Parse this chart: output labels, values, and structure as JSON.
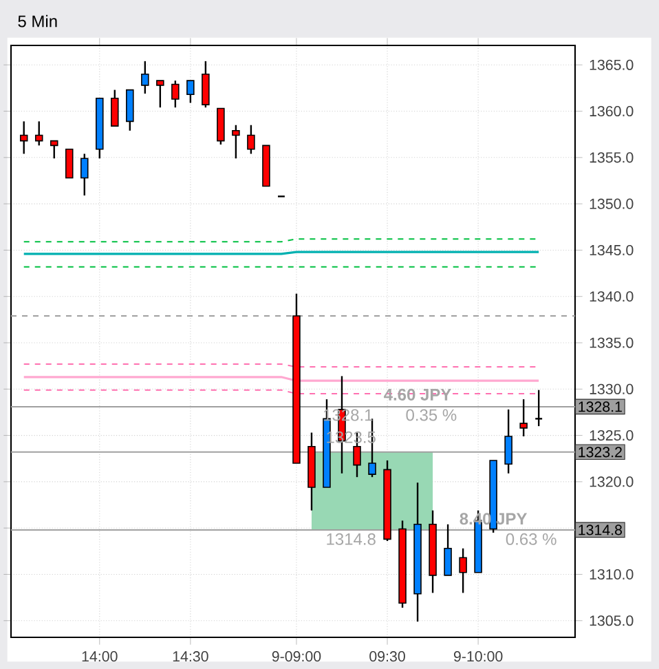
{
  "chart_data": {
    "type": "candlestick",
    "title": "5 Min",
    "categories": [
      null,
      null,
      null,
      null,
      null,
      "14:00",
      null,
      null,
      null,
      null,
      null,
      "14:30",
      null,
      null,
      null,
      null,
      null,
      null,
      "9-09:00",
      null,
      null,
      null,
      null,
      null,
      "09:30",
      null,
      null,
      null,
      null,
      null,
      "9-10:00",
      null,
      null,
      null,
      null
    ],
    "ohlc": [
      [
        1357.4,
        1358.9,
        1355.4,
        1356.8
      ],
      [
        1357.4,
        1358.9,
        1356.3,
        1356.8
      ],
      [
        1356.8,
        1356.8,
        1354.9,
        1356.3
      ],
      [
        1355.9,
        1355.9,
        1352.8,
        1352.8
      ],
      [
        1352.8,
        1355.4,
        1350.9,
        1354.9
      ],
      [
        1355.9,
        1361.4,
        1354.9,
        1361.4
      ],
      [
        1361.4,
        1362.3,
        1358.4,
        1358.4
      ],
      [
        1358.9,
        1362.3,
        1357.9,
        1362.3
      ],
      [
        1362.8,
        1365.4,
        1361.9,
        1364.0
      ],
      [
        1363.3,
        1363.3,
        1360.4,
        1362.8
      ],
      [
        1362.9,
        1363.3,
        1360.4,
        1361.3
      ],
      [
        1361.8,
        1363.3,
        1360.9,
        1363.3
      ],
      [
        1364.0,
        1365.4,
        1360.4,
        1360.7
      ],
      [
        1360.3,
        1360.3,
        1356.4,
        1356.8
      ],
      [
        1357.9,
        1358.5,
        1354.9,
        1357.4
      ],
      [
        1357.4,
        1358.5,
        1355.4,
        1355.9
      ],
      [
        1356.3,
        1356.3,
        1351.9,
        1351.9
      ],
      [
        1350.8,
        1350.8,
        1350.8,
        1350.8
      ],
      [
        1337.9,
        1340.3,
        1322.0,
        1322.0
      ],
      [
        1323.8,
        1325.3,
        1316.9,
        1319.4
      ],
      [
        1319.4,
        1328.9,
        1319.4,
        1326.8
      ],
      [
        1327.8,
        1331.4,
        1320.9,
        1324.4
      ],
      [
        1323.8,
        1325.3,
        1320.5,
        1321.8
      ],
      [
        1320.8,
        1326.8,
        1320.5,
        1322.0
      ],
      [
        1321.3,
        1322.3,
        1313.6,
        1313.8
      ],
      [
        1314.9,
        1315.8,
        1306.4,
        1306.9
      ],
      [
        1307.9,
        1319.9,
        1304.9,
        1315.4
      ],
      [
        1315.4,
        1316.9,
        1308.0,
        1309.9
      ],
      [
        1309.9,
        1315.4,
        1309.9,
        1312.8
      ],
      [
        1311.8,
        1312.8,
        1308.0,
        1310.2
      ],
      [
        1310.2,
        1316.9,
        1310.2,
        1315.8
      ],
      [
        1314.9,
        1322.3,
        1314.5,
        1322.3
      ],
      [
        1321.9,
        1327.8,
        1320.9,
        1324.9
      ],
      [
        1326.3,
        1328.9,
        1324.9,
        1325.8
      ],
      [
        1326.8,
        1329.9,
        1326.0,
        1326.8
      ]
    ],
    "colors": [
      "#ff0000",
      "#ff0000",
      "#ff0000",
      "#ff0000",
      "#0080ff",
      "#0080ff",
      "#ff0000",
      "#0080ff",
      "#0080ff",
      "#ff0000",
      "#ff0000",
      "#0080ff",
      "#ff0000",
      "#ff0000",
      "#ff0000",
      "#ff0000",
      "#ff0000",
      "#000000",
      "#ff0000",
      "#ff0000",
      "#0080ff",
      "#ff0000",
      "#ff0000",
      "#0080ff",
      "#ff0000",
      "#ff0000",
      "#0080ff",
      "#ff0000",
      "#0080ff",
      "#ff0000",
      "#0080ff",
      "#0080ff",
      "#0080ff",
      "#ff0000",
      "#000000"
    ],
    "series": [
      {
        "type": "line",
        "color": "#00c040",
        "line_style": "dashed",
        "values": [
          1345.9,
          1345.9,
          1345.9,
          1345.9,
          1345.9,
          1345.9,
          1345.9,
          1345.9,
          1345.9,
          1345.9,
          1345.9,
          1345.9,
          1345.9,
          1345.9,
          1345.9,
          1345.9,
          1345.9,
          1345.9,
          1346.2,
          1346.2,
          1346.2,
          1346.2,
          1346.2,
          1346.2,
          1346.2,
          1346.2,
          1346.2,
          1346.2,
          1346.2,
          1346.2,
          1346.2,
          1346.2,
          1346.2,
          1346.2,
          1346.2
        ]
      },
      {
        "type": "line",
        "color": "#00b0b0",
        "line_style": "solid",
        "values": [
          1344.6,
          1344.6,
          1344.6,
          1344.6,
          1344.6,
          1344.6,
          1344.6,
          1344.6,
          1344.6,
          1344.6,
          1344.6,
          1344.6,
          1344.6,
          1344.6,
          1344.6,
          1344.6,
          1344.6,
          1344.6,
          1344.8,
          1344.8,
          1344.8,
          1344.8,
          1344.8,
          1344.8,
          1344.8,
          1344.8,
          1344.8,
          1344.8,
          1344.8,
          1344.8,
          1344.8,
          1344.8,
          1344.8,
          1344.8,
          1344.8
        ]
      },
      {
        "type": "line",
        "color": "#00c040",
        "line_style": "dashed",
        "values": [
          1343.2,
          1343.2,
          1343.2,
          1343.2,
          1343.2,
          1343.2,
          1343.2,
          1343.2,
          1343.2,
          1343.2,
          1343.2,
          1343.2,
          1343.2,
          1343.2,
          1343.2,
          1343.2,
          1343.2,
          1343.2,
          1343.2,
          1343.2,
          1343.2,
          1343.2,
          1343.2,
          1343.2,
          1343.2,
          1343.2,
          1343.2,
          1343.2,
          1343.2,
          1343.2,
          1343.2,
          1343.2,
          1343.2,
          1343.2,
          1343.2
        ]
      },
      {
        "type": "line",
        "color": "#ff70b0",
        "line_style": "dashed",
        "values": [
          1332.7,
          1332.7,
          1332.7,
          1332.7,
          1332.7,
          1332.7,
          1332.7,
          1332.7,
          1332.7,
          1332.7,
          1332.7,
          1332.7,
          1332.7,
          1332.7,
          1332.7,
          1332.7,
          1332.7,
          1332.7,
          1332.4,
          1332.4,
          1332.4,
          1332.4,
          1332.4,
          1332.4,
          1332.4,
          1332.4,
          1332.4,
          1332.4,
          1332.4,
          1332.4,
          1332.4,
          1332.4,
          1332.4,
          1332.4,
          1332.4
        ]
      },
      {
        "type": "line",
        "color": "#ffa8d0",
        "line_style": "solid",
        "values": [
          1331.3,
          1331.3,
          1331.3,
          1331.3,
          1331.3,
          1331.3,
          1331.3,
          1331.3,
          1331.3,
          1331.3,
          1331.3,
          1331.3,
          1331.3,
          1331.3,
          1331.3,
          1331.3,
          1331.3,
          1331.3,
          1330.9,
          1330.9,
          1330.9,
          1330.9,
          1330.9,
          1330.9,
          1330.9,
          1330.9,
          1330.9,
          1330.9,
          1330.9,
          1330.9,
          1330.9,
          1330.9,
          1330.9,
          1330.9,
          1330.9
        ]
      },
      {
        "type": "line",
        "color": "#ff70b0",
        "line_style": "dashed",
        "values": [
          1329.9,
          1329.9,
          1329.9,
          1329.9,
          1329.9,
          1329.9,
          1329.9,
          1329.9,
          1329.9,
          1329.9,
          1329.9,
          1329.9,
          1329.9,
          1329.9,
          1329.9,
          1329.9,
          1329.9,
          1329.9,
          1329.5,
          1329.5,
          1329.5,
          1329.5,
          1329.5,
          1329.5,
          1329.5,
          1329.5,
          1329.5,
          1329.5,
          1329.5,
          1329.5,
          1329.5,
          1329.5,
          1329.5,
          1329.5,
          1329.5
        ]
      }
    ],
    "ref_lines": [
      {
        "axis": "y",
        "value": 1337.9,
        "color": "#a0a0a0",
        "line_style": "dashed"
      },
      {
        "axis": "y",
        "value": 1328.1,
        "label": "1328.1",
        "color": "#a0a0a0",
        "line_style": "solid"
      },
      {
        "axis": "y",
        "value": 1323.2,
        "label": "1323.2",
        "color": "#a0a0a0",
        "line_style": "solid"
      },
      {
        "axis": "y",
        "value": 1314.8,
        "label": "1314.8",
        "color": "#a0a0a0",
        "line_style": "solid"
      }
    ],
    "bands": [
      {
        "axis": "y",
        "from": 1314.8,
        "to": 1323.2,
        "color": "#98d8b4"
      }
    ],
    "annotations": [
      "4.60 JPY",
      "1328.1",
      "0.35 %",
      "1323.5",
      "8.40 JPY",
      "1314.8",
      "0.63 %"
    ],
    "ylim": [
      1303.2,
      1367.1
    ],
    "yticks": [
      {
        "value": 1305,
        "label": "1305.0"
      },
      {
        "value": 1310,
        "label": "1310.0"
      },
      {
        "value": 1315,
        "label": null
      },
      {
        "value": 1320,
        "label": "1320.0"
      },
      {
        "value": 1325,
        "label": "1325.0"
      },
      {
        "value": 1330,
        "label": "1330.0"
      },
      {
        "value": 1335,
        "label": "1335.0"
      },
      {
        "value": 1340,
        "label": "1340.0"
      },
      {
        "value": 1345,
        "label": "1345.0"
      },
      {
        "value": 1350,
        "label": "1350.0"
      },
      {
        "value": 1355,
        "label": "1355.0"
      },
      {
        "value": 1360,
        "label": "1360.0"
      },
      {
        "value": 1365,
        "label": "1365.0"
      }
    ],
    "grid": true
  }
}
